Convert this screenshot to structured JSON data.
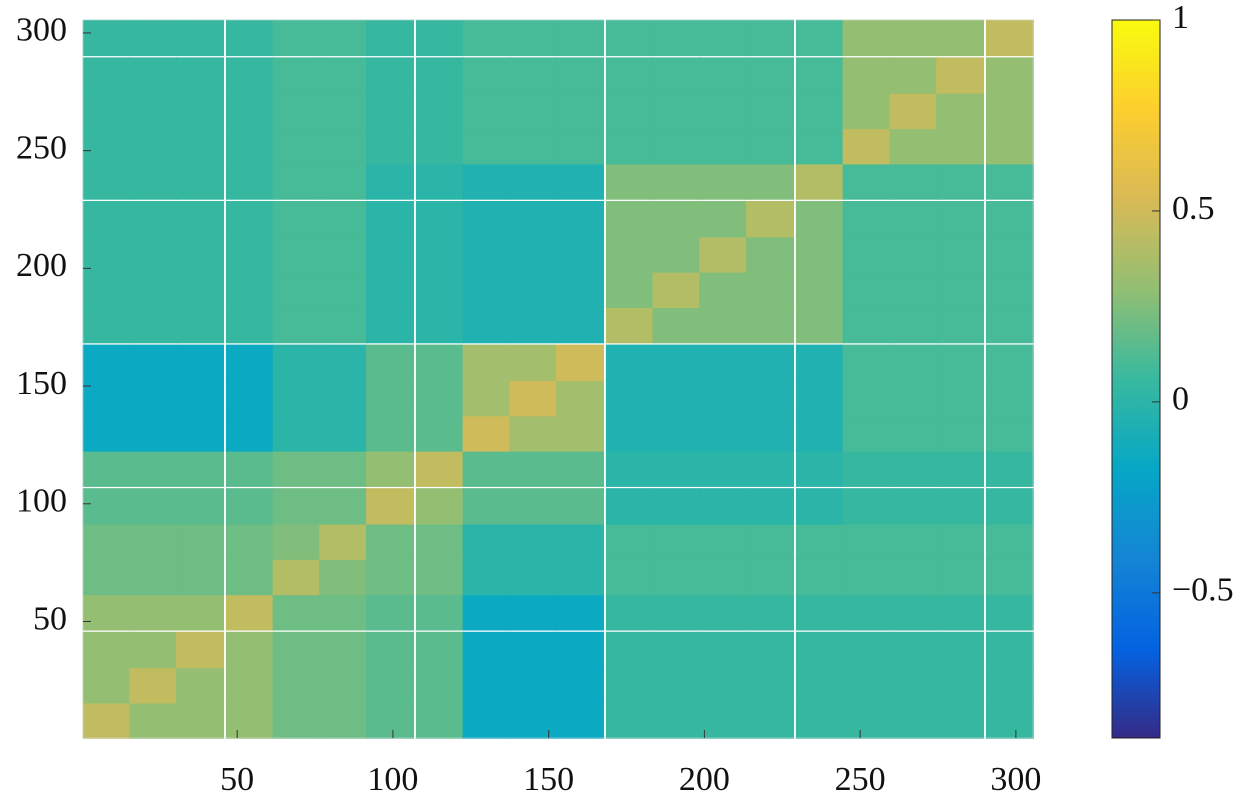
{
  "chart_data": {
    "type": "heatmap",
    "x": [
      8,
      23,
      38,
      54,
      69,
      84,
      99,
      115,
      130,
      145,
      160,
      176,
      191,
      206,
      221,
      237,
      252,
      267,
      282,
      298
    ],
    "y": [
      8,
      23,
      38,
      54,
      69,
      84,
      99,
      115,
      130,
      145,
      160,
      176,
      191,
      206,
      221,
      237,
      252,
      267,
      282,
      298
    ],
    "z": [
      [
        0.45,
        0.3,
        0.3,
        0.3,
        0.2,
        0.2,
        0.15,
        0.15,
        -0.15,
        -0.15,
        -0.15,
        0.05,
        0.05,
        0.05,
        0.05,
        0.05,
        0.05,
        0.05,
        0.05,
        0.05
      ],
      [
        0.3,
        0.45,
        0.3,
        0.3,
        0.2,
        0.2,
        0.15,
        0.15,
        -0.15,
        -0.15,
        -0.15,
        0.05,
        0.05,
        0.05,
        0.05,
        0.05,
        0.05,
        0.05,
        0.05,
        0.05
      ],
      [
        0.3,
        0.3,
        0.45,
        0.3,
        0.2,
        0.2,
        0.15,
        0.15,
        -0.15,
        -0.15,
        -0.15,
        0.05,
        0.05,
        0.05,
        0.05,
        0.05,
        0.05,
        0.05,
        0.05,
        0.05
      ],
      [
        0.3,
        0.3,
        0.3,
        0.45,
        0.2,
        0.2,
        0.15,
        0.15,
        -0.15,
        -0.15,
        -0.15,
        0.05,
        0.05,
        0.05,
        0.05,
        0.05,
        0.05,
        0.05,
        0.05,
        0.05
      ],
      [
        0.2,
        0.2,
        0.2,
        0.2,
        0.4,
        0.25,
        0.2,
        0.2,
        0,
        0,
        0,
        0.1,
        0.1,
        0.1,
        0.1,
        0.1,
        0.1,
        0.1,
        0.1,
        0.1
      ],
      [
        0.2,
        0.2,
        0.2,
        0.2,
        0.25,
        0.4,
        0.2,
        0.2,
        0,
        0,
        0,
        0.1,
        0.1,
        0.1,
        0.1,
        0.1,
        0.1,
        0.1,
        0.1,
        0.1
      ],
      [
        0.15,
        0.15,
        0.15,
        0.15,
        0.2,
        0.2,
        0.45,
        0.3,
        0.15,
        0.15,
        0.15,
        0,
        0,
        0,
        0,
        0,
        0.05,
        0.05,
        0.05,
        0.05
      ],
      [
        0.15,
        0.15,
        0.15,
        0.15,
        0.2,
        0.2,
        0.3,
        0.45,
        0.15,
        0.15,
        0.15,
        0,
        0,
        0,
        0,
        0,
        0.05,
        0.05,
        0.05,
        0.05
      ],
      [
        -0.15,
        -0.15,
        -0.15,
        -0.15,
        0,
        0,
        0.15,
        0.15,
        0.5,
        0.35,
        0.35,
        -0.05,
        -0.05,
        -0.05,
        -0.05,
        -0.05,
        0.1,
        0.1,
        0.1,
        0.1
      ],
      [
        -0.15,
        -0.15,
        -0.15,
        -0.15,
        0,
        0,
        0.15,
        0.15,
        0.35,
        0.5,
        0.35,
        -0.05,
        -0.05,
        -0.05,
        -0.05,
        -0.05,
        0.1,
        0.1,
        0.1,
        0.1
      ],
      [
        -0.15,
        -0.15,
        -0.15,
        -0.15,
        0,
        0,
        0.15,
        0.15,
        0.35,
        0.35,
        0.5,
        -0.05,
        -0.05,
        -0.05,
        -0.05,
        -0.05,
        0.1,
        0.1,
        0.1,
        0.1
      ],
      [
        0.05,
        0.05,
        0.05,
        0.05,
        0.1,
        0.1,
        0,
        0,
        -0.05,
        -0.05,
        -0.05,
        0.4,
        0.25,
        0.25,
        0.25,
        0.25,
        0.1,
        0.1,
        0.1,
        0.1
      ],
      [
        0.05,
        0.05,
        0.05,
        0.05,
        0.1,
        0.1,
        0,
        0,
        -0.05,
        -0.05,
        -0.05,
        0.25,
        0.4,
        0.25,
        0.25,
        0.25,
        0.1,
        0.1,
        0.1,
        0.1
      ],
      [
        0.05,
        0.05,
        0.05,
        0.05,
        0.1,
        0.1,
        0,
        0,
        -0.05,
        -0.05,
        -0.05,
        0.25,
        0.25,
        0.4,
        0.25,
        0.25,
        0.1,
        0.1,
        0.1,
        0.1
      ],
      [
        0.05,
        0.05,
        0.05,
        0.05,
        0.1,
        0.1,
        0,
        0,
        -0.05,
        -0.05,
        -0.05,
        0.25,
        0.25,
        0.25,
        0.4,
        0.25,
        0.1,
        0.1,
        0.1,
        0.1
      ],
      [
        0.05,
        0.05,
        0.05,
        0.05,
        0.1,
        0.1,
        0,
        0,
        -0.05,
        -0.05,
        -0.05,
        0.25,
        0.25,
        0.25,
        0.25,
        0.4,
        0.1,
        0.1,
        0.1,
        0.1
      ],
      [
        0.05,
        0.05,
        0.05,
        0.05,
        0.1,
        0.1,
        0.05,
        0.05,
        0.1,
        0.1,
        0.1,
        0.1,
        0.1,
        0.1,
        0.1,
        0.1,
        0.45,
        0.3,
        0.3,
        0.3
      ],
      [
        0.05,
        0.05,
        0.05,
        0.05,
        0.1,
        0.1,
        0.05,
        0.05,
        0.1,
        0.1,
        0.1,
        0.1,
        0.1,
        0.1,
        0.1,
        0.1,
        0.3,
        0.45,
        0.3,
        0.3
      ],
      [
        0.05,
        0.05,
        0.05,
        0.05,
        0.1,
        0.1,
        0.05,
        0.05,
        0.1,
        0.1,
        0.1,
        0.1,
        0.1,
        0.1,
        0.1,
        0.1,
        0.3,
        0.3,
        0.45,
        0.3
      ],
      [
        0.05,
        0.05,
        0.05,
        0.05,
        0.1,
        0.1,
        0.05,
        0.05,
        0.1,
        0.1,
        0.1,
        0.1,
        0.1,
        0.1,
        0.1,
        0.1,
        0.3,
        0.3,
        0.3,
        0.45
      ]
    ],
    "xlim": [
      0.5,
      305.5
    ],
    "ylim": [
      0.5,
      305.5
    ],
    "xticks": [
      50,
      100,
      150,
      200,
      250,
      300
    ],
    "yticks": [
      50,
      100,
      150,
      200,
      250,
      300
    ],
    "clim": [
      -0.88,
      1
    ],
    "cticks": [
      {
        "value": -0.5,
        "label": "−0.5"
      },
      0,
      0.5,
      1
    ],
    "colormap": [
      "#352a87",
      "#0363e1",
      "#1485d4",
      "#06a7c6",
      "#38b99e",
      "#92bf73",
      "#d9ba56",
      "#fcce2e",
      "#f9fb0e"
    ]
  }
}
